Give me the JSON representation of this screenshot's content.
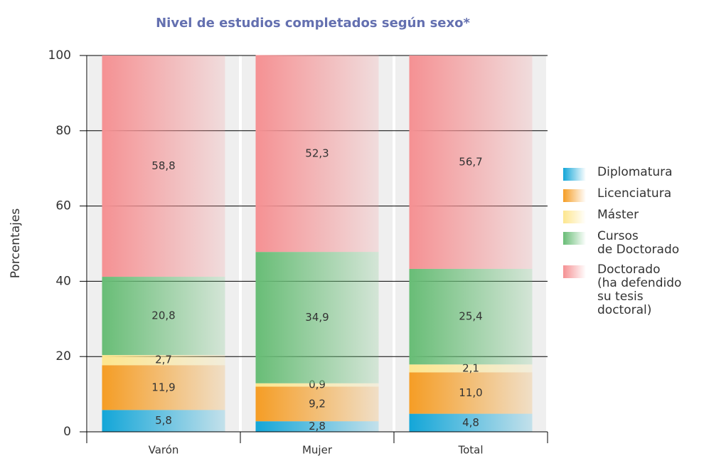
{
  "chart_data": {
    "type": "stacked_bar",
    "title": "Nivel de estudios completados según sexo*",
    "y_label": "Porcentajes",
    "categories": [
      "Varón",
      "Mujer",
      "Total"
    ],
    "series": [
      {
        "name": "Diplomatura",
        "color": "#13a6d8",
        "values": [
          5.8,
          2.8,
          4.8
        ],
        "value_labels": [
          "5,8",
          "2,8",
          "4,8"
        ]
      },
      {
        "name": "Licenciatura",
        "color": "#f59d25",
        "values": [
          11.9,
          9.2,
          11.0
        ],
        "value_labels": [
          "11,9",
          "9,2",
          "11,0"
        ]
      },
      {
        "name": "Máster",
        "color": "#fde68e",
        "values": [
          2.7,
          0.9,
          2.1
        ],
        "value_labels": [
          "2,7",
          "0,9",
          "2,1"
        ]
      },
      {
        "name": "Cursos\nde Doctorado",
        "color": "#68bd76",
        "values": [
          20.8,
          34.9,
          25.4
        ],
        "value_labels": [
          "20,8",
          "34,9",
          "25,4"
        ]
      },
      {
        "name": "Doctorado\n(ha defendido\nsu tesis\ndoctoral)",
        "color": "#f59193",
        "values": [
          58.8,
          52.3,
          56.7
        ],
        "value_labels": [
          "58,8",
          "52,3",
          "56,7"
        ]
      }
    ],
    "ylim": [
      0,
      100
    ],
    "yticks": [
      0,
      20,
      40,
      60,
      80,
      100
    ],
    "grid": true,
    "legend": "right"
  }
}
